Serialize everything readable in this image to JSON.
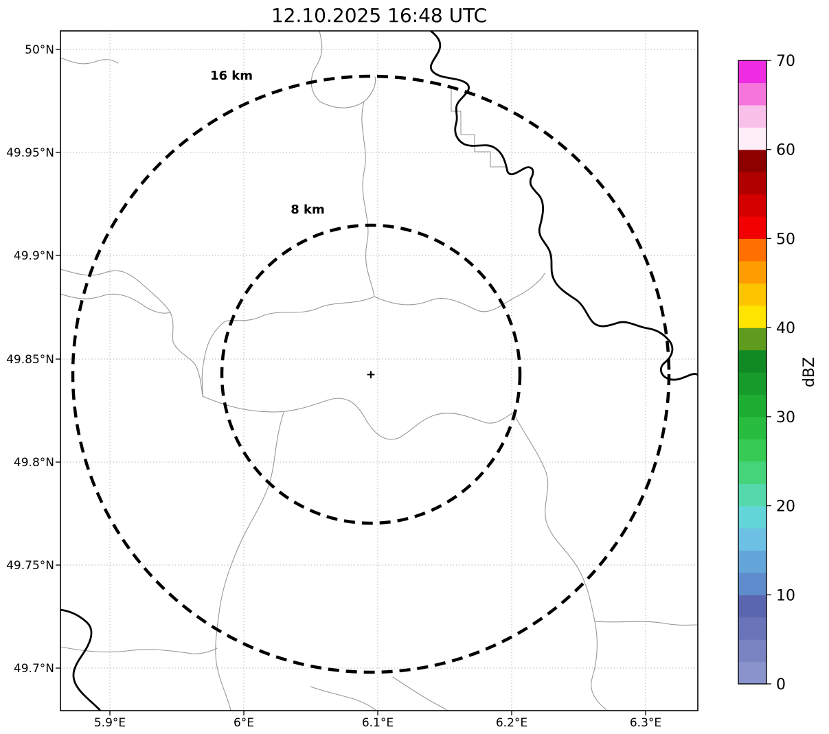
{
  "title": "12.10.2025 16:48 UTC",
  "map": {
    "center_marker": "+",
    "range_rings": [
      {
        "label": "16 km",
        "radius_km": 16
      },
      {
        "label": "8 km",
        "radius_km": 8
      }
    ]
  },
  "axes": {
    "x_ticks": [
      "5.9°E",
      "6°E",
      "6.1°E",
      "6.2°E",
      "6.3°E"
    ],
    "y_ticks": [
      "50°N",
      "49.95°N",
      "49.9°N",
      "49.85°N",
      "49.8°N",
      "49.75°N",
      "49.7°N"
    ]
  },
  "colorbar": {
    "label": "dBZ",
    "min": 0,
    "max": 70,
    "ticks": [
      {
        "v": 0,
        "label": "0"
      },
      {
        "v": 10,
        "label": "10"
      },
      {
        "v": 20,
        "label": "20"
      },
      {
        "v": 30,
        "label": "30"
      },
      {
        "v": 40,
        "label": "40"
      },
      {
        "v": 50,
        "label": "50"
      },
      {
        "v": 60,
        "label": "60"
      },
      {
        "v": 70,
        "label": "70"
      }
    ],
    "bands_bottom_to_top": [
      "#8a93cb",
      "#7a84c2",
      "#6a75b9",
      "#5b66b0",
      "#5e8ccd",
      "#64a6da",
      "#6cc0e4",
      "#62d5d8",
      "#54d8ac",
      "#45d47a",
      "#36cc54",
      "#29bd3f",
      "#1ead33",
      "#179b2b",
      "#118a24",
      "#5f9c1d",
      "#ffe400",
      "#ffc400",
      "#ff9c00",
      "#ff7000",
      "#f20000",
      "#d40000",
      "#b00000",
      "#8c0000",
      "#fdeef8",
      "#f9c0ea",
      "#f575dd",
      "#ee2ce2"
    ]
  }
}
